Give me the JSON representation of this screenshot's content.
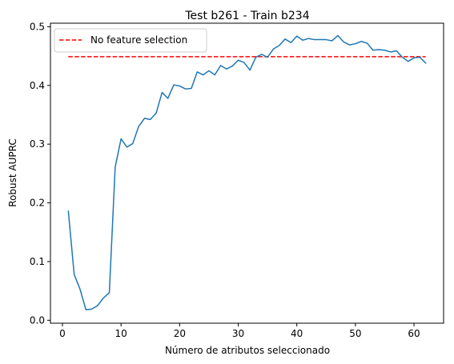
{
  "chart_data": {
    "type": "line",
    "title": "Test b261 - Train b234",
    "xlabel": "Número de atributos seleccionado",
    "ylabel": "Robust AUPRC",
    "xlim": [
      -2.05,
      65.05
    ],
    "ylim": [
      -0.005,
      0.506
    ],
    "xticks": [
      0,
      10,
      20,
      30,
      40,
      50,
      60
    ],
    "yticks": [
      0.0,
      0.1,
      0.2,
      0.3,
      0.4,
      0.5
    ],
    "ytick_labels": [
      "0.0",
      "0.1",
      "0.2",
      "0.3",
      "0.4",
      "0.5"
    ],
    "grid": false,
    "legend_position": "upper-left",
    "colors": {
      "series": "#1f77b4",
      "baseline": "#ff0000"
    },
    "series": [
      {
        "x": [
          1,
          2,
          3,
          4,
          5,
          6,
          7,
          8,
          9,
          10,
          11,
          12,
          13,
          14,
          15,
          16,
          17,
          18,
          19,
          20,
          21,
          22,
          23,
          24,
          25,
          26,
          27,
          28,
          29,
          30,
          31,
          32,
          33,
          34,
          35,
          36,
          37,
          38,
          39,
          40,
          41,
          42,
          43,
          44,
          45,
          46,
          47,
          48,
          49,
          50,
          51,
          52,
          53,
          54,
          55,
          56,
          57,
          58,
          59,
          60,
          61,
          62
        ],
        "values": [
          0.186,
          0.078,
          0.053,
          0.018,
          0.019,
          0.025,
          0.038,
          0.047,
          0.261,
          0.309,
          0.295,
          0.301,
          0.33,
          0.344,
          0.342,
          0.353,
          0.388,
          0.378,
          0.401,
          0.399,
          0.394,
          0.395,
          0.423,
          0.418,
          0.425,
          0.418,
          0.434,
          0.428,
          0.433,
          0.443,
          0.439,
          0.426,
          0.448,
          0.453,
          0.448,
          0.462,
          0.468,
          0.479,
          0.473,
          0.484,
          0.477,
          0.48,
          0.478,
          0.478,
          0.478,
          0.476,
          0.485,
          0.474,
          0.469,
          0.471,
          0.475,
          0.472,
          0.46,
          0.461,
          0.46,
          0.457,
          0.459,
          0.448,
          0.441,
          0.447,
          0.448,
          0.438
        ]
      }
    ],
    "baseline": {
      "name": "No feature selection",
      "y": 0.449,
      "x_range": [
        1,
        62
      ],
      "style": "dashed"
    }
  }
}
